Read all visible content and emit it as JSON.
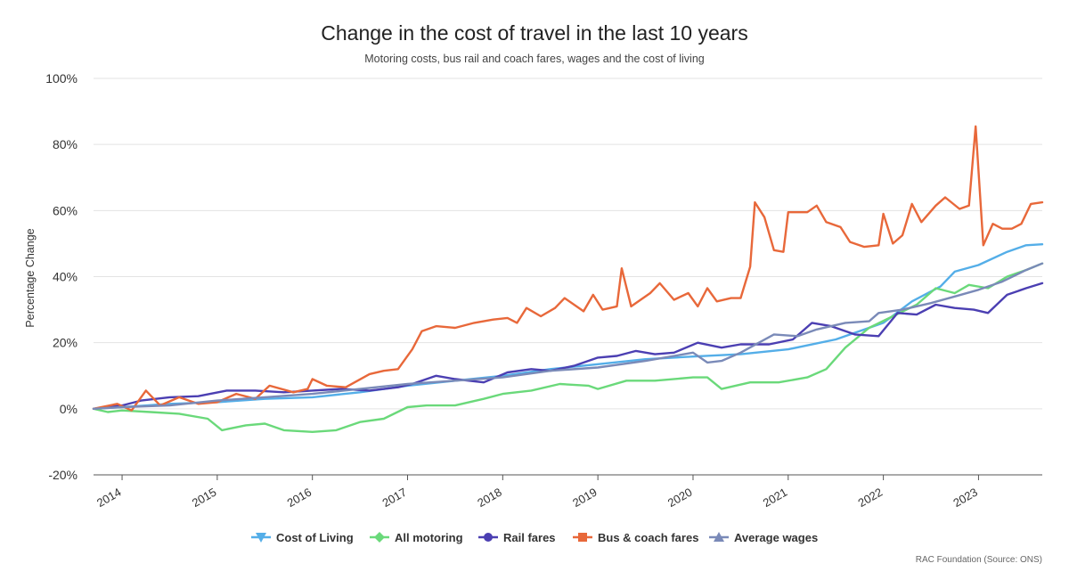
{
  "chart_data": {
    "type": "line",
    "title": "Change in the cost of travel in the last 10 years",
    "subtitle": "Motoring costs, bus rail and coach fares, wages and the cost of living",
    "xlabel": "",
    "ylabel": "Percentage Change",
    "credit": "RAC Foundation (Source: ONS)",
    "ylim": [
      -20,
      100
    ],
    "yticks": [
      -20,
      0,
      20,
      40,
      60,
      80,
      100
    ],
    "ytick_labels": [
      "-20%",
      "0%",
      "20%",
      "40%",
      "60%",
      "80%",
      "100%"
    ],
    "xlim": [
      2013.7,
      2023.67
    ],
    "xticks": [
      2014,
      2015,
      2016,
      2017,
      2018,
      2019,
      2020,
      2021,
      2022,
      2023
    ],
    "xtick_labels": [
      "2014",
      "2015",
      "2016",
      "2017",
      "2018",
      "2019",
      "2020",
      "2021",
      "2022",
      "2023"
    ],
    "grid": "horizontal",
    "legend_position": "bottom",
    "series": [
      {
        "name": "Cost of Living",
        "color": "#54aee8",
        "marker": "triangle-down",
        "points": [
          [
            2013.7,
            0
          ],
          [
            2014.0,
            0.5
          ],
          [
            2014.5,
            1.5
          ],
          [
            2015.0,
            2.0
          ],
          [
            2015.5,
            3.0
          ],
          [
            2016.0,
            3.5
          ],
          [
            2016.5,
            5.0
          ],
          [
            2017.0,
            7.0
          ],
          [
            2017.5,
            8.5
          ],
          [
            2018.0,
            10.0
          ],
          [
            2018.5,
            12.0
          ],
          [
            2019.0,
            13.5
          ],
          [
            2019.5,
            15.0
          ],
          [
            2020.0,
            15.8
          ],
          [
            2020.5,
            16.5
          ],
          [
            2021.0,
            18.0
          ],
          [
            2021.5,
            21.0
          ],
          [
            2022.0,
            26.0
          ],
          [
            2022.3,
            32.5
          ],
          [
            2022.6,
            37.0
          ],
          [
            2022.75,
            41.5
          ],
          [
            2023.0,
            43.5
          ],
          [
            2023.3,
            47.5
          ],
          [
            2023.5,
            49.5
          ],
          [
            2023.67,
            49.8
          ]
        ]
      },
      {
        "name": "All motoring",
        "color": "#6ad97a",
        "marker": "diamond",
        "points": [
          [
            2013.7,
            0
          ],
          [
            2013.85,
            -1.0
          ],
          [
            2014.0,
            -0.5
          ],
          [
            2014.3,
            -1.0
          ],
          [
            2014.6,
            -1.5
          ],
          [
            2014.9,
            -3.0
          ],
          [
            2015.05,
            -6.5
          ],
          [
            2015.3,
            -5.0
          ],
          [
            2015.5,
            -4.5
          ],
          [
            2015.7,
            -6.5
          ],
          [
            2016.0,
            -7.0
          ],
          [
            2016.25,
            -6.5
          ],
          [
            2016.5,
            -4.0
          ],
          [
            2016.75,
            -3.0
          ],
          [
            2017.0,
            0.5
          ],
          [
            2017.2,
            1.0
          ],
          [
            2017.5,
            1.0
          ],
          [
            2017.8,
            3.0
          ],
          [
            2018.0,
            4.5
          ],
          [
            2018.3,
            5.5
          ],
          [
            2018.6,
            7.5
          ],
          [
            2018.9,
            7.0
          ],
          [
            2019.0,
            6.0
          ],
          [
            2019.3,
            8.5
          ],
          [
            2019.6,
            8.5
          ],
          [
            2020.0,
            9.5
          ],
          [
            2020.15,
            9.5
          ],
          [
            2020.3,
            6.0
          ],
          [
            2020.6,
            8.0
          ],
          [
            2020.9,
            8.0
          ],
          [
            2021.2,
            9.5
          ],
          [
            2021.4,
            12.0
          ],
          [
            2021.6,
            18.5
          ],
          [
            2021.85,
            24.5
          ],
          [
            2022.1,
            28.0
          ],
          [
            2022.35,
            31.5
          ],
          [
            2022.55,
            36.5
          ],
          [
            2022.75,
            35.0
          ],
          [
            2022.9,
            37.5
          ],
          [
            2023.1,
            36.5
          ],
          [
            2023.3,
            40.0
          ],
          [
            2023.5,
            42.0
          ],
          [
            2023.67,
            44.0
          ]
        ]
      },
      {
        "name": "Rail fares",
        "color": "#4b3fb2",
        "marker": "circle",
        "points": [
          [
            2013.7,
            0
          ],
          [
            2014.0,
            1.0
          ],
          [
            2014.2,
            2.5
          ],
          [
            2014.5,
            3.5
          ],
          [
            2014.8,
            3.8
          ],
          [
            2015.1,
            5.5
          ],
          [
            2015.4,
            5.5
          ],
          [
            2015.7,
            5.0
          ],
          [
            2016.0,
            5.5
          ],
          [
            2016.3,
            6.0
          ],
          [
            2016.6,
            5.5
          ],
          [
            2016.9,
            6.5
          ],
          [
            2017.05,
            7.5
          ],
          [
            2017.3,
            10.0
          ],
          [
            2017.5,
            9.0
          ],
          [
            2017.8,
            8.0
          ],
          [
            2018.05,
            11.0
          ],
          [
            2018.3,
            12.0
          ],
          [
            2018.5,
            11.5
          ],
          [
            2018.75,
            13.0
          ],
          [
            2019.0,
            15.5
          ],
          [
            2019.2,
            16.0
          ],
          [
            2019.4,
            17.5
          ],
          [
            2019.6,
            16.5
          ],
          [
            2019.8,
            17.0
          ],
          [
            2020.05,
            20.0
          ],
          [
            2020.3,
            18.5
          ],
          [
            2020.5,
            19.5
          ],
          [
            2020.8,
            19.5
          ],
          [
            2021.05,
            21.0
          ],
          [
            2021.25,
            26.0
          ],
          [
            2021.45,
            25.0
          ],
          [
            2021.7,
            22.5
          ],
          [
            2021.95,
            22.0
          ],
          [
            2022.15,
            29.0
          ],
          [
            2022.35,
            28.5
          ],
          [
            2022.55,
            31.5
          ],
          [
            2022.75,
            30.5
          ],
          [
            2022.95,
            30.0
          ],
          [
            2023.1,
            29.0
          ],
          [
            2023.3,
            34.5
          ],
          [
            2023.5,
            36.5
          ],
          [
            2023.67,
            38.0
          ]
        ]
      },
      {
        "name": "Bus & coach fares",
        "color": "#e8683a",
        "marker": "square",
        "points": [
          [
            2013.7,
            0
          ],
          [
            2013.95,
            1.5
          ],
          [
            2014.1,
            -0.5
          ],
          [
            2014.25,
            5.5
          ],
          [
            2014.4,
            1.0
          ],
          [
            2014.6,
            3.5
          ],
          [
            2014.8,
            1.5
          ],
          [
            2015.0,
            2.0
          ],
          [
            2015.2,
            4.5
          ],
          [
            2015.4,
            3.0
          ],
          [
            2015.55,
            7.0
          ],
          [
            2015.8,
            5.0
          ],
          [
            2015.95,
            6.0
          ],
          [
            2016.0,
            9.0
          ],
          [
            2016.15,
            7.0
          ],
          [
            2016.35,
            6.5
          ],
          [
            2016.6,
            10.5
          ],
          [
            2016.75,
            11.5
          ],
          [
            2016.9,
            12.0
          ],
          [
            2017.05,
            18.0
          ],
          [
            2017.15,
            23.5
          ],
          [
            2017.3,
            25.0
          ],
          [
            2017.5,
            24.5
          ],
          [
            2017.7,
            26.0
          ],
          [
            2017.9,
            27.0
          ],
          [
            2018.05,
            27.5
          ],
          [
            2018.15,
            26.0
          ],
          [
            2018.25,
            30.5
          ],
          [
            2018.4,
            28.0
          ],
          [
            2018.55,
            30.5
          ],
          [
            2018.65,
            33.5
          ],
          [
            2018.85,
            29.5
          ],
          [
            2018.95,
            34.5
          ],
          [
            2019.05,
            30.0
          ],
          [
            2019.2,
            31.0
          ],
          [
            2019.25,
            42.5
          ],
          [
            2019.35,
            31.0
          ],
          [
            2019.55,
            35.0
          ],
          [
            2019.65,
            38.0
          ],
          [
            2019.8,
            33.0
          ],
          [
            2019.95,
            35.0
          ],
          [
            2020.05,
            31.0
          ],
          [
            2020.15,
            36.5
          ],
          [
            2020.25,
            32.5
          ],
          [
            2020.4,
            33.5
          ],
          [
            2020.5,
            33.5
          ],
          [
            2020.6,
            43.0
          ],
          [
            2020.65,
            62.5
          ],
          [
            2020.75,
            58.0
          ],
          [
            2020.85,
            48.0
          ],
          [
            2020.95,
            47.5
          ],
          [
            2021.0,
            59.5
          ],
          [
            2021.2,
            59.5
          ],
          [
            2021.3,
            61.5
          ],
          [
            2021.4,
            56.5
          ],
          [
            2021.55,
            55.0
          ],
          [
            2021.65,
            50.5
          ],
          [
            2021.8,
            49.0
          ],
          [
            2021.95,
            49.5
          ],
          [
            2022.0,
            59.0
          ],
          [
            2022.1,
            50.0
          ],
          [
            2022.2,
            52.5
          ],
          [
            2022.3,
            62.0
          ],
          [
            2022.4,
            56.5
          ],
          [
            2022.55,
            61.5
          ],
          [
            2022.65,
            64.0
          ],
          [
            2022.8,
            60.5
          ],
          [
            2022.9,
            61.5
          ],
          [
            2022.97,
            85.5
          ],
          [
            2023.05,
            49.5
          ],
          [
            2023.15,
            56.0
          ],
          [
            2023.25,
            54.5
          ],
          [
            2023.35,
            54.5
          ],
          [
            2023.45,
            56.0
          ],
          [
            2023.55,
            62.0
          ],
          [
            2023.67,
            62.5
          ]
        ]
      },
      {
        "name": "Average wages",
        "color": "#7a8ab8",
        "marker": "triangle-up",
        "points": [
          [
            2013.7,
            0
          ],
          [
            2014.0,
            0.5
          ],
          [
            2014.5,
            1.0
          ],
          [
            2015.0,
            2.5
          ],
          [
            2015.5,
            3.5
          ],
          [
            2016.0,
            4.5
          ],
          [
            2016.5,
            6.0
          ],
          [
            2017.0,
            7.5
          ],
          [
            2017.5,
            8.5
          ],
          [
            2018.0,
            9.5
          ],
          [
            2018.5,
            11.5
          ],
          [
            2019.0,
            12.5
          ],
          [
            2019.5,
            14.5
          ],
          [
            2020.0,
            17.0
          ],
          [
            2020.15,
            14.0
          ],
          [
            2020.3,
            14.5
          ],
          [
            2020.5,
            17.0
          ],
          [
            2020.85,
            22.5
          ],
          [
            2021.1,
            22.0
          ],
          [
            2021.3,
            24.0
          ],
          [
            2021.6,
            26.0
          ],
          [
            2021.85,
            26.5
          ],
          [
            2021.95,
            29.0
          ],
          [
            2022.2,
            30.0
          ],
          [
            2022.5,
            32.0
          ],
          [
            2022.75,
            34.0
          ],
          [
            2023.0,
            36.0
          ],
          [
            2023.25,
            38.5
          ],
          [
            2023.5,
            42.0
          ],
          [
            2023.67,
            44.0
          ]
        ]
      }
    ]
  }
}
